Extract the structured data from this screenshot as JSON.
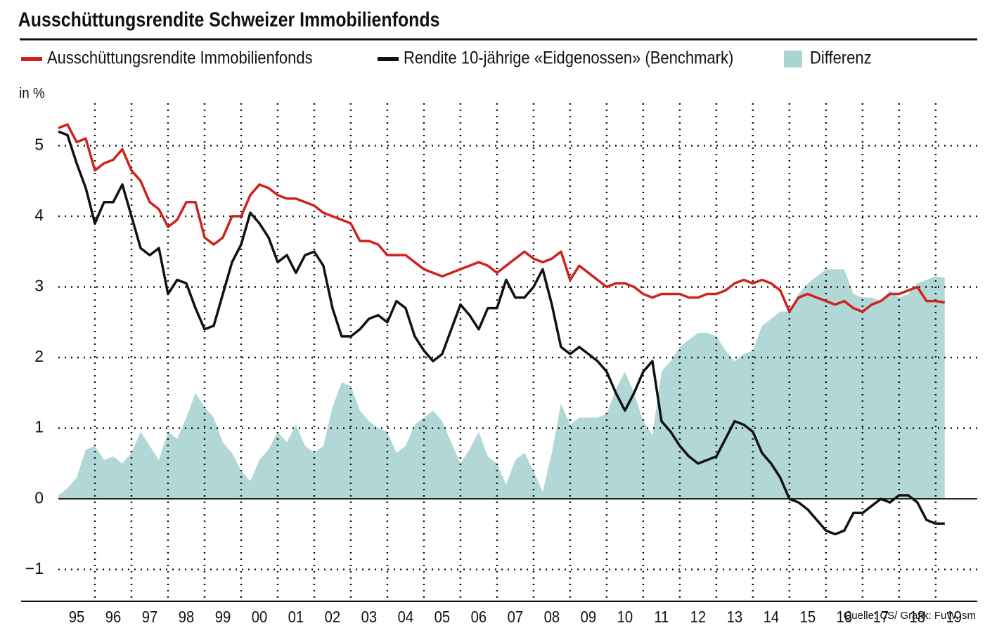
{
  "chart_data": {
    "type": "line",
    "title": "Ausschüttungsrendite Schweizer Immobilienfonds",
    "y_label": "in %",
    "source": "Quelle: CS/ Grafik: FuW, sm",
    "x": [
      1995,
      1995.25,
      1995.5,
      1995.75,
      1996,
      1996.25,
      1996.5,
      1996.75,
      1997,
      1997.25,
      1997.5,
      1997.75,
      1998,
      1998.25,
      1998.5,
      1998.75,
      1999,
      1999.25,
      1999.5,
      1999.75,
      2000,
      2000.25,
      2000.5,
      2000.75,
      2001,
      2001.25,
      2001.5,
      2001.75,
      2002,
      2002.25,
      2002.5,
      2002.75,
      2003,
      2003.25,
      2003.5,
      2003.75,
      2004,
      2004.25,
      2004.5,
      2004.75,
      2005,
      2005.25,
      2005.5,
      2005.75,
      2006,
      2006.25,
      2006.5,
      2006.75,
      2007,
      2007.25,
      2007.5,
      2007.75,
      2008,
      2008.25,
      2008.5,
      2008.75,
      2009,
      2009.25,
      2009.5,
      2009.75,
      2010,
      2010.25,
      2010.5,
      2010.75,
      2011,
      2011.25,
      2011.5,
      2011.75,
      2012,
      2012.25,
      2012.5,
      2012.75,
      2013,
      2013.25,
      2013.5,
      2013.75,
      2014,
      2014.25,
      2014.5,
      2014.75,
      2015,
      2015.25,
      2015.5,
      2015.75,
      2016,
      2016.25,
      2016.5,
      2016.75,
      2017,
      2017.25,
      2017.5,
      2017.75,
      2018,
      2018.25,
      2018.5,
      2018.75,
      2019,
      2019.25
    ],
    "series": [
      {
        "name": "Differenz",
        "type": "area",
        "color": "#a9d4d1",
        "values": [
          0.05,
          0.15,
          0.3,
          0.7,
          0.75,
          0.55,
          0.6,
          0.5,
          0.65,
          0.95,
          0.75,
          0.55,
          0.95,
          0.85,
          1.15,
          1.5,
          1.3,
          1.15,
          0.8,
          0.65,
          0.4,
          0.25,
          0.55,
          0.7,
          0.95,
          0.8,
          1.05,
          0.75,
          0.65,
          0.75,
          1.3,
          1.65,
          1.6,
          1.25,
          1.1,
          1.0,
          0.95,
          0.65,
          0.75,
          1.05,
          1.15,
          1.25,
          1.1,
          0.8,
          0.5,
          0.7,
          0.95,
          0.6,
          0.5,
          0.2,
          0.55,
          0.65,
          0.4,
          0.1,
          0.65,
          1.35,
          1.05,
          1.15,
          1.15,
          1.15,
          1.2,
          1.55,
          1.8,
          1.5,
          1.1,
          0.9,
          1.8,
          1.95,
          2.15,
          2.25,
          2.35,
          2.35,
          2.3,
          2.1,
          1.95,
          2.05,
          2.1,
          2.45,
          2.55,
          2.65,
          2.65,
          2.9,
          3.05,
          3.15,
          3.25,
          3.25,
          3.25,
          2.9,
          2.85,
          2.85,
          2.8,
          2.95,
          2.85,
          2.9,
          3.05,
          3.1,
          3.15,
          3.13
        ]
      },
      {
        "name": "Ausschüttungsrendite Immobilienfonds",
        "type": "line",
        "color": "#d0211c",
        "values": [
          5.25,
          5.3,
          5.05,
          5.1,
          4.65,
          4.75,
          4.8,
          4.95,
          4.65,
          4.5,
          4.2,
          4.1,
          3.85,
          3.95,
          4.2,
          4.2,
          3.7,
          3.6,
          3.7,
          4.0,
          4.0,
          4.3,
          4.45,
          4.4,
          4.3,
          4.25,
          4.25,
          4.2,
          4.15,
          4.05,
          4.0,
          3.95,
          3.9,
          3.65,
          3.65,
          3.6,
          3.45,
          3.45,
          3.45,
          3.35,
          3.25,
          3.2,
          3.15,
          3.2,
          3.25,
          3.3,
          3.35,
          3.3,
          3.2,
          3.3,
          3.4,
          3.5,
          3.4,
          3.35,
          3.4,
          3.5,
          3.1,
          3.3,
          3.2,
          3.1,
          3.0,
          3.05,
          3.05,
          3.0,
          2.9,
          2.85,
          2.9,
          2.9,
          2.9,
          2.85,
          2.85,
          2.9,
          2.9,
          2.95,
          3.05,
          3.1,
          3.05,
          3.1,
          3.05,
          2.95,
          2.65,
          2.85,
          2.9,
          2.85,
          2.8,
          2.75,
          2.8,
          2.7,
          2.65,
          2.75,
          2.8,
          2.9,
          2.9,
          2.95,
          3.0,
          2.8,
          2.8,
          2.78
        ]
      },
      {
        "name": "Rendite 10-jährige «Eidgenossen» (Benchmark)",
        "type": "line",
        "color": "#111111",
        "values": [
          5.2,
          5.15,
          4.75,
          4.4,
          3.9,
          4.2,
          4.2,
          4.45,
          4.0,
          3.55,
          3.45,
          3.55,
          2.9,
          3.1,
          3.05,
          2.7,
          2.4,
          2.45,
          2.9,
          3.35,
          3.6,
          4.05,
          3.9,
          3.7,
          3.35,
          3.45,
          3.2,
          3.45,
          3.5,
          3.3,
          2.7,
          2.3,
          2.3,
          2.4,
          2.55,
          2.6,
          2.5,
          2.8,
          2.7,
          2.3,
          2.1,
          1.95,
          2.05,
          2.4,
          2.75,
          2.6,
          2.4,
          2.7,
          2.7,
          3.1,
          2.85,
          2.85,
          3.0,
          3.25,
          2.75,
          2.15,
          2.05,
          2.15,
          2.05,
          1.95,
          1.8,
          1.5,
          1.25,
          1.5,
          1.8,
          1.95,
          1.1,
          0.95,
          0.75,
          0.6,
          0.5,
          0.55,
          0.6,
          0.85,
          1.1,
          1.05,
          0.95,
          0.65,
          0.5,
          0.3,
          0.0,
          -0.05,
          -0.15,
          -0.3,
          -0.45,
          -0.5,
          -0.45,
          -0.2,
          -0.2,
          -0.1,
          0.0,
          -0.05,
          0.05,
          0.05,
          -0.05,
          -0.3,
          -0.35,
          -0.35
        ]
      }
    ],
    "xlim": [
      1995,
      2020.1
    ],
    "xticks": [
      {
        "value": 1995,
        "label": "95"
      },
      {
        "value": 1996,
        "label": "96"
      },
      {
        "value": 1997,
        "label": "97"
      },
      {
        "value": 1998,
        "label": "98"
      },
      {
        "value": 1999,
        "label": "99"
      },
      {
        "value": 2000,
        "label": "00"
      },
      {
        "value": 2001,
        "label": "01"
      },
      {
        "value": 2002,
        "label": "02"
      },
      {
        "value": 2003,
        "label": "03"
      },
      {
        "value": 2004,
        "label": "04"
      },
      {
        "value": 2005,
        "label": "05"
      },
      {
        "value": 2006,
        "label": "06"
      },
      {
        "value": 2007,
        "label": "07"
      },
      {
        "value": 2008,
        "label": "08"
      },
      {
        "value": 2009,
        "label": "09"
      },
      {
        "value": 2010,
        "label": "10"
      },
      {
        "value": 2011,
        "label": "11"
      },
      {
        "value": 2012,
        "label": "12"
      },
      {
        "value": 2013,
        "label": "13"
      },
      {
        "value": 2014,
        "label": "14"
      },
      {
        "value": 2015,
        "label": "15"
      },
      {
        "value": 2016,
        "label": "16"
      },
      {
        "value": 2017,
        "label": "17"
      },
      {
        "value": 2018,
        "label": "18"
      },
      {
        "value": 2019,
        "label": "19"
      }
    ],
    "ylim": [
      -1.45,
      5.6
    ],
    "yticks": [
      {
        "value": -1,
        "label": "−1"
      },
      0,
      1,
      2,
      3,
      4,
      5
    ],
    "grid": true,
    "legend": "top"
  }
}
